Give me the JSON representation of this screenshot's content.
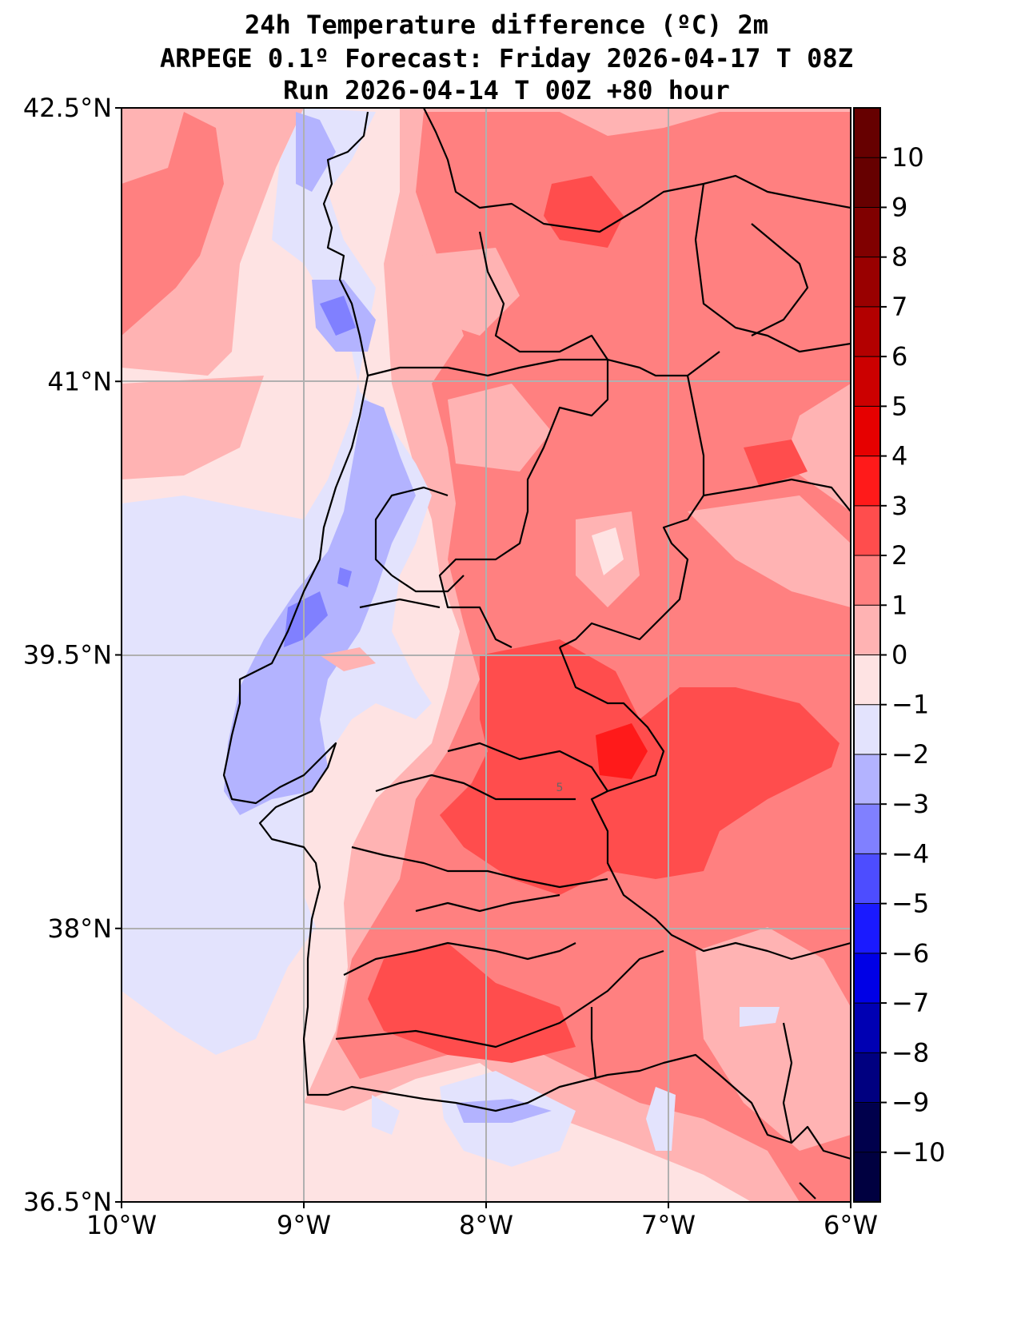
{
  "title": {
    "line1": "24h Temperature difference (ºC) 2m",
    "line2": "ARPEGE 0.1º Forecast: Friday 2026-04-17 T 08Z",
    "line3": "Run 2026-04-14 T 00Z +80 hour"
  },
  "map": {
    "lon_range": [
      -10,
      -6
    ],
    "lat_range": [
      36.5,
      42.5
    ],
    "lat_ticks": [
      {
        "value": 42.5,
        "label": "42.5°N"
      },
      {
        "value": 41.0,
        "label": "41°N"
      },
      {
        "value": 39.5,
        "label": "39.5°N"
      },
      {
        "value": 38.0,
        "label": "38°N"
      },
      {
        "value": 36.5,
        "label": "36.5°N"
      }
    ],
    "lon_ticks": [
      {
        "value": -10,
        "label": "10°W"
      },
      {
        "value": -9,
        "label": "9°W"
      },
      {
        "value": -8,
        "label": "8°W"
      },
      {
        "value": -7,
        "label": "7°W"
      },
      {
        "value": -6,
        "label": "6°W"
      }
    ],
    "contour_label": "5"
  },
  "colorbar": {
    "levels": [
      -10,
      -9,
      -8,
      -7,
      -6,
      -5,
      -4,
      -3,
      -2,
      -1,
      0,
      1,
      2,
      3,
      4,
      5,
      6,
      7,
      8,
      9,
      10
    ],
    "labels": [
      "−10",
      "−9",
      "−8",
      "−7",
      "−6",
      "−5",
      "−4",
      "−3",
      "−2",
      "−1",
      "0",
      "1",
      "2",
      "3",
      "4",
      "5",
      "6",
      "7",
      "8",
      "9",
      "10"
    ],
    "colors_low_to_high": [
      "#00004c",
      "#000080",
      "#0000b3",
      "#0000e6",
      "#1a1aff",
      "#4d4dff",
      "#8080ff",
      "#b3b3ff",
      "#e3e3fd",
      "#fee3e3",
      "#ffb3b3",
      "#ff8080",
      "#ff4d4d",
      "#ff1a1a",
      "#e60000",
      "#cc0000",
      "#b30000",
      "#990000",
      "#800000",
      "#660000"
    ],
    "extend_colors": {
      "below": "#000040",
      "above": "#660000"
    }
  }
}
